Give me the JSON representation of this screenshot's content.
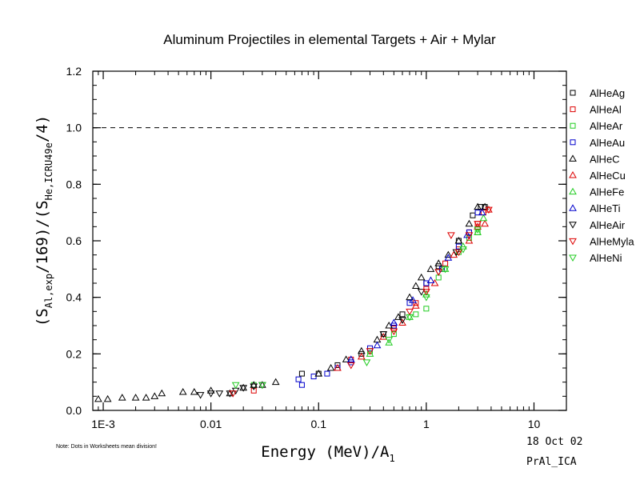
{
  "chart_data": {
    "type": "scatter",
    "title": "Aluminum Projectiles in elemental Targets + Air + Mylar",
    "xlabel": {
      "main": "Energy (MeV)/A",
      "sub": "1"
    },
    "ylabel": {
      "p1": "(S",
      "sub1": "Al,exp",
      "p2": "/169)/(S",
      "sub2": "He,ICRU49e",
      "p3": "/4)"
    },
    "x_scale": "log",
    "xlim": [
      0.0008,
      20
    ],
    "ylim": [
      0,
      1.2
    ],
    "x_ticks": [
      {
        "value": 0.001,
        "label": "1E-3"
      },
      {
        "value": 0.01,
        "label": "0.01"
      },
      {
        "value": 0.1,
        "label": "0.1"
      },
      {
        "value": 1,
        "label": "1"
      },
      {
        "value": 10,
        "label": "10"
      }
    ],
    "y_ticks": [
      {
        "value": 0,
        "label": "0.0"
      },
      {
        "value": 0.2,
        "label": "0.2"
      },
      {
        "value": 0.4,
        "label": "0.4"
      },
      {
        "value": 0.6,
        "label": "0.6"
      },
      {
        "value": 0.8,
        "label": "0.8"
      },
      {
        "value": 1.0,
        "label": "1.0"
      },
      {
        "value": 1.2,
        "label": "1.2"
      }
    ],
    "reference_line": {
      "y": 1.0,
      "style": "dashed"
    },
    "legend_position": "right",
    "series": [
      {
        "name": "AlHeAg",
        "marker": "square",
        "color": "#000000",
        "points": [
          [
            0.07,
            0.13
          ],
          [
            0.1,
            0.13
          ],
          [
            0.15,
            0.16
          ],
          [
            0.25,
            0.2
          ],
          [
            0.4,
            0.27
          ],
          [
            0.6,
            0.34
          ],
          [
            1.0,
            0.45
          ],
          [
            1.3,
            0.51
          ],
          [
            2.0,
            0.6
          ],
          [
            2.7,
            0.69
          ],
          [
            3.2,
            0.72
          ],
          [
            3.5,
            0.72
          ]
        ]
      },
      {
        "name": "AlHeAl",
        "marker": "square",
        "color": "#dd0000",
        "points": [
          [
            0.025,
            0.07
          ],
          [
            0.15,
            0.15
          ],
          [
            0.2,
            0.18
          ],
          [
            0.3,
            0.21
          ],
          [
            0.5,
            0.29
          ],
          [
            0.8,
            0.38
          ],
          [
            1.0,
            0.43
          ],
          [
            1.5,
            0.52
          ],
          [
            2.0,
            0.57
          ],
          [
            2.5,
            0.63
          ],
          [
            3.0,
            0.66
          ],
          [
            3.4,
            0.7
          ]
        ]
      },
      {
        "name": "AlHeAr",
        "marker": "square",
        "color": "#22cc22",
        "points": [
          [
            0.025,
            0.09
          ],
          [
            0.3,
            0.21
          ],
          [
            0.5,
            0.27
          ],
          [
            0.8,
            0.34
          ],
          [
            1.0,
            0.36
          ],
          [
            1.3,
            0.47
          ],
          [
            2.0,
            0.56
          ],
          [
            2.5,
            0.61
          ],
          [
            3.0,
            0.63
          ]
        ]
      },
      {
        "name": "AlHeAu",
        "marker": "square",
        "color": "#0000cc",
        "points": [
          [
            0.065,
            0.11
          ],
          [
            0.07,
            0.09
          ],
          [
            0.09,
            0.12
          ],
          [
            0.12,
            0.13
          ],
          [
            0.15,
            0.15
          ],
          [
            0.2,
            0.17
          ],
          [
            0.3,
            0.22
          ],
          [
            0.5,
            0.3
          ],
          [
            0.7,
            0.38
          ],
          [
            1.0,
            0.45
          ],
          [
            1.4,
            0.5
          ],
          [
            2.0,
            0.58
          ],
          [
            2.5,
            0.63
          ],
          [
            3.0,
            0.7
          ]
        ]
      },
      {
        "name": "AlHeC",
        "marker": "triangle-up",
        "color": "#000000",
        "points": [
          [
            0.0009,
            0.04
          ],
          [
            0.0011,
            0.04
          ],
          [
            0.0015,
            0.045
          ],
          [
            0.002,
            0.045
          ],
          [
            0.0025,
            0.045
          ],
          [
            0.003,
            0.05
          ],
          [
            0.0035,
            0.06
          ],
          [
            0.0055,
            0.065
          ],
          [
            0.007,
            0.065
          ],
          [
            0.01,
            0.07
          ],
          [
            0.015,
            0.06
          ],
          [
            0.02,
            0.08
          ],
          [
            0.025,
            0.09
          ],
          [
            0.03,
            0.09
          ],
          [
            0.04,
            0.1
          ],
          [
            0.1,
            0.13
          ],
          [
            0.13,
            0.15
          ],
          [
            0.18,
            0.18
          ],
          [
            0.25,
            0.21
          ],
          [
            0.35,
            0.25
          ],
          [
            0.45,
            0.3
          ],
          [
            0.55,
            0.33
          ],
          [
            0.7,
            0.4
          ],
          [
            0.8,
            0.44
          ],
          [
            0.9,
            0.47
          ],
          [
            1.1,
            0.5
          ],
          [
            1.3,
            0.52
          ],
          [
            1.6,
            0.55
          ],
          [
            2.0,
            0.6
          ],
          [
            2.5,
            0.66
          ],
          [
            3.0,
            0.72
          ],
          [
            3.5,
            0.72
          ]
        ]
      },
      {
        "name": "AlHeCu",
        "marker": "triangle-up",
        "color": "#dd0000",
        "points": [
          [
            0.15,
            0.15
          ],
          [
            0.25,
            0.19
          ],
          [
            0.4,
            0.26
          ],
          [
            0.6,
            0.31
          ],
          [
            0.8,
            0.37
          ],
          [
            1.2,
            0.45
          ],
          [
            1.8,
            0.55
          ],
          [
            2.5,
            0.6
          ],
          [
            3.0,
            0.65
          ],
          [
            3.5,
            0.66
          ],
          [
            3.8,
            0.71
          ]
        ]
      },
      {
        "name": "AlHeFe",
        "marker": "triangle-up",
        "color": "#22cc22",
        "points": [
          [
            0.3,
            0.2
          ],
          [
            0.45,
            0.24
          ],
          [
            0.7,
            0.33
          ],
          [
            1.0,
            0.41
          ],
          [
            1.5,
            0.5
          ],
          [
            2.2,
            0.58
          ],
          [
            3.0,
            0.63
          ],
          [
            3.4,
            0.68
          ]
        ]
      },
      {
        "name": "AlHeTi",
        "marker": "triangle-up",
        "color": "#0000cc",
        "points": [
          [
            0.2,
            0.18
          ],
          [
            0.35,
            0.23
          ],
          [
            0.5,
            0.31
          ],
          [
            0.75,
            0.39
          ],
          [
            1.1,
            0.46
          ],
          [
            1.6,
            0.54
          ],
          [
            2.4,
            0.62
          ],
          [
            3.3,
            0.7
          ]
        ]
      },
      {
        "name": "AlHeAir",
        "marker": "triangle-down",
        "color": "#000000",
        "points": [
          [
            0.008,
            0.055
          ],
          [
            0.01,
            0.06
          ],
          [
            0.012,
            0.06
          ],
          [
            0.015,
            0.06
          ],
          [
            0.017,
            0.07
          ],
          [
            0.02,
            0.08
          ],
          [
            0.025,
            0.085
          ],
          [
            0.03,
            0.09
          ],
          [
            0.4,
            0.27
          ],
          [
            0.6,
            0.32
          ],
          [
            0.9,
            0.42
          ],
          [
            1.3,
            0.49
          ],
          [
            1.9,
            0.56
          ]
        ]
      },
      {
        "name": "AlHeMyla",
        "marker": "triangle-down",
        "color": "#dd0000",
        "points": [
          [
            0.016,
            0.06
          ],
          [
            0.2,
            0.16
          ],
          [
            0.3,
            0.21
          ],
          [
            0.5,
            0.28
          ],
          [
            0.7,
            0.35
          ],
          [
            1.0,
            0.42
          ],
          [
            1.3,
            0.49
          ],
          [
            1.7,
            0.62
          ],
          [
            2.0,
            0.56
          ],
          [
            2.5,
            0.62
          ],
          [
            3.0,
            0.66
          ],
          [
            3.8,
            0.71
          ]
        ]
      },
      {
        "name": "AlHeNi",
        "marker": "triangle-down",
        "color": "#22cc22",
        "points": [
          [
            0.017,
            0.09
          ],
          [
            0.03,
            0.09
          ],
          [
            0.28,
            0.17
          ],
          [
            0.45,
            0.25
          ],
          [
            0.7,
            0.33
          ],
          [
            1.0,
            0.4
          ],
          [
            1.5,
            0.5
          ],
          [
            2.2,
            0.57
          ],
          [
            3.0,
            0.64
          ]
        ]
      }
    ]
  },
  "footnote": "Note: Dots in Worksheets mean division!",
  "date_stamp": "18 Oct 02",
  "file_id": "PrAl_ICA"
}
